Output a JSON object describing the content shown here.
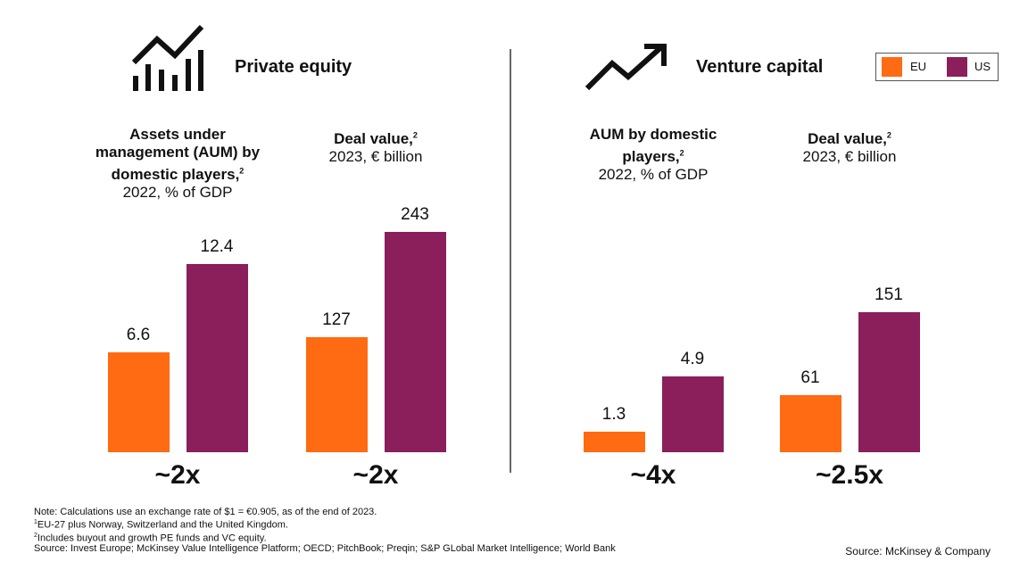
{
  "sections": [
    {
      "title": "Private equity"
    },
    {
      "title": "Venture capital"
    }
  ],
  "legend": {
    "series": [
      {
        "name": "EU",
        "color": "#ff6b12"
      },
      {
        "name": "US",
        "color": "#8a1f5c"
      }
    ]
  },
  "chart_data": [
    {
      "type": "bar",
      "title": "Assets under management (AUM) by domestic players,",
      "title_note": "2",
      "subtitle": "2022, % of GDP",
      "values": [
        6.6,
        12.4
      ],
      "ylim": [
        0,
        17.6
      ],
      "multiplier": "~2x"
    },
    {
      "type": "bar",
      "title": "Deal value,",
      "title_note": "2",
      "subtitle": "2023, € billion",
      "values": [
        127,
        243
      ],
      "ylim": [
        0,
        295
      ],
      "multiplier": "~2x"
    },
    {
      "type": "bar",
      "title": "AUM by domestic players,",
      "title_note": "2",
      "subtitle": "2022, % of GDP",
      "values": [
        1.3,
        4.9
      ],
      "ylim": [
        0,
        17.3
      ],
      "multiplier": "~4x"
    },
    {
      "type": "bar",
      "title": "Deal value,",
      "title_note": "2",
      "subtitle": "2023, € billion",
      "values": [
        61,
        151
      ],
      "ylim": [
        0,
        288
      ],
      "multiplier": "~2.5x"
    }
  ],
  "notes": [
    {
      "text": "Note: Calculations use an exchange rate of $1 = €0.905, as of the end of 2023."
    },
    {
      "mark": "1",
      "text": "EU-27 plus Norway, Switzerland and the United Kingdom."
    },
    {
      "mark": "2",
      "text": "Includes buyout and growth PE funds and VC equity."
    },
    {
      "text": "Source: Invest Europe; McKinsey Value Intelligence Platform; OECD; PitchBook; Preqin; S&P GLobal Market Intelligence; World Bank"
    }
  ],
  "source": "Source: McKinsey & Company"
}
